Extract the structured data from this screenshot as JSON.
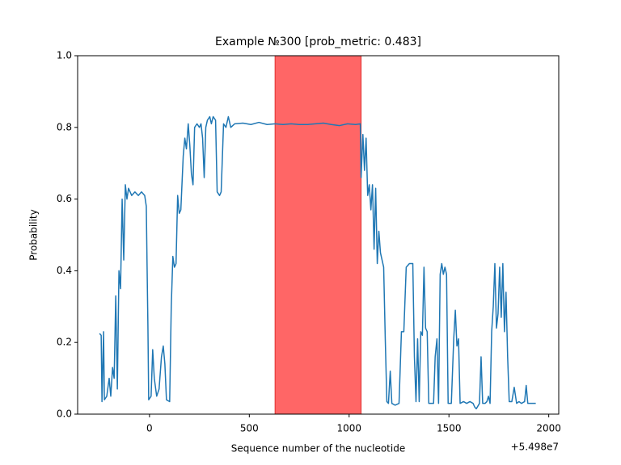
{
  "chart_data": {
    "type": "line",
    "title": "Example №300 [prob_metric: 0.483]",
    "x_label": "Sequence number of the nucleotide",
    "y_label": "Probability",
    "x_offset_label": "+5.498e7",
    "xlim": [
      -360,
      2050
    ],
    "ylim": [
      0,
      1
    ],
    "xticks": [
      0,
      500,
      1000,
      1500,
      2000
    ],
    "yticks": [
      {
        "value": 0,
        "label": "0.0"
      },
      0.2,
      0.4,
      0.6,
      0.8,
      {
        "value": 1,
        "label": "1.0"
      }
    ],
    "highlight_span": [
      629,
      1060
    ],
    "highlight_color": "#ff6666",
    "series": [
      {
        "color": "#1f77b4",
        "x": [
          -250,
          -242,
          -238,
          -230,
          -226,
          -214,
          -202,
          -194,
          -185,
          -177,
          -169,
          -161,
          -153,
          -145,
          -137,
          -129,
          -121,
          -113,
          -105,
          -89,
          -73,
          -56,
          -40,
          -24,
          -16,
          -12,
          -8,
          -4,
          8,
          16,
          24,
          36,
          48,
          60,
          69,
          77,
          85,
          101,
          109,
          117,
          125,
          133,
          141,
          149,
          157,
          169,
          177,
          185,
          194,
          202,
          210,
          218,
          226,
          238,
          250,
          258,
          266,
          274,
          282,
          290,
          302,
          310,
          319,
          331,
          339,
          351,
          359,
          371,
          383,
          395,
          407,
          427,
          468,
          508,
          548,
          589,
          629,
          669,
          710,
          750,
          790,
          831,
          871,
          911,
          952,
          992,
          1032,
          1056,
          1060,
          1069,
          1077,
          1085,
          1093,
          1101,
          1109,
          1117,
          1125,
          1133,
          1141,
          1149,
          1157,
          1165,
          1173,
          1181,
          1189,
          1197,
          1206,
          1214,
          1230,
          1250,
          1262,
          1274,
          1286,
          1302,
          1319,
          1327,
          1335,
          1343,
          1351,
          1359,
          1367,
          1375,
          1383,
          1391,
          1399,
          1411,
          1423,
          1431,
          1440,
          1448,
          1456,
          1464,
          1472,
          1480,
          1488,
          1496,
          1512,
          1524,
          1532,
          1540,
          1548,
          1556,
          1573,
          1589,
          1605,
          1621,
          1629,
          1637,
          1653,
          1661,
          1669,
          1681,
          1690,
          1698,
          1706,
          1714,
          1722,
          1730,
          1738,
          1746,
          1754,
          1762,
          1770,
          1778,
          1786,
          1794,
          1802,
          1815,
          1827,
          1839,
          1851,
          1863,
          1879,
          1887,
          1895,
          1911,
          1935
        ],
        "values": [
          0.225,
          0.22,
          0.035,
          0.23,
          0.04,
          0.05,
          0.1,
          0.05,
          0.13,
          0.1,
          0.33,
          0.07,
          0.4,
          0.35,
          0.6,
          0.43,
          0.64,
          0.6,
          0.63,
          0.61,
          0.62,
          0.61,
          0.62,
          0.61,
          0.58,
          0.41,
          0.25,
          0.04,
          0.05,
          0.18,
          0.1,
          0.05,
          0.07,
          0.16,
          0.19,
          0.14,
          0.04,
          0.035,
          0.3,
          0.44,
          0.41,
          0.42,
          0.61,
          0.56,
          0.57,
          0.72,
          0.77,
          0.74,
          0.81,
          0.75,
          0.67,
          0.64,
          0.8,
          0.81,
          0.8,
          0.81,
          0.77,
          0.66,
          0.8,
          0.82,
          0.83,
          0.81,
          0.83,
          0.82,
          0.62,
          0.61,
          0.62,
          0.81,
          0.8,
          0.83,
          0.8,
          0.81,
          0.812,
          0.808,
          0.814,
          0.808,
          0.81,
          0.808,
          0.81,
          0.808,
          0.808,
          0.81,
          0.812,
          0.808,
          0.805,
          0.81,
          0.808,
          0.81,
          0.66,
          0.78,
          0.68,
          0.77,
          0.61,
          0.64,
          0.57,
          0.64,
          0.46,
          0.63,
          0.42,
          0.51,
          0.45,
          0.43,
          0.41,
          0.21,
          0.035,
          0.03,
          0.12,
          0.03,
          0.025,
          0.03,
          0.23,
          0.23,
          0.41,
          0.42,
          0.42,
          0.16,
          0.035,
          0.21,
          0.035,
          0.23,
          0.22,
          0.41,
          0.24,
          0.23,
          0.03,
          0.03,
          0.03,
          0.16,
          0.21,
          0.03,
          0.39,
          0.42,
          0.39,
          0.41,
          0.39,
          0.03,
          0.03,
          0.21,
          0.29,
          0.19,
          0.21,
          0.03,
          0.035,
          0.03,
          0.035,
          0.03,
          0.02,
          0.015,
          0.03,
          0.16,
          0.03,
          0.03,
          0.035,
          0.05,
          0.03,
          0.23,
          0.3,
          0.42,
          0.24,
          0.28,
          0.41,
          0.27,
          0.42,
          0.23,
          0.34,
          0.16,
          0.035,
          0.035,
          0.075,
          0.03,
          0.035,
          0.03,
          0.035,
          0.08,
          0.03,
          0.03,
          0.03
        ]
      }
    ]
  }
}
